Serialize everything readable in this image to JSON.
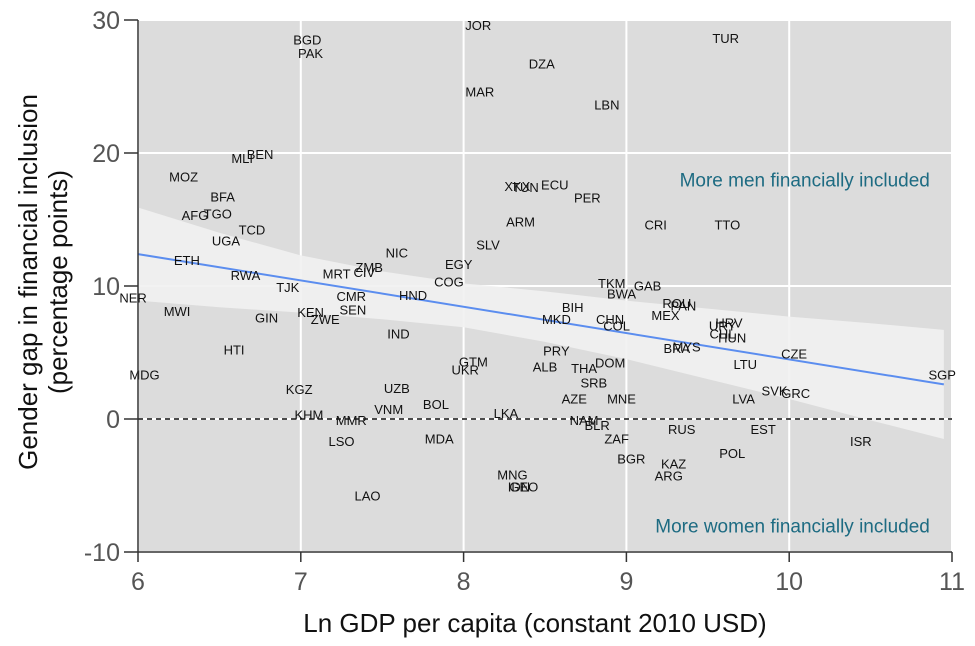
{
  "chart_data": {
    "type": "scatter",
    "title": "",
    "xlabel": "Ln GDP per capita (constant 2010 USD)",
    "ylabel_line1": "Gender gap in financial inclusion",
    "ylabel_line2": "(percentage points)",
    "xlim": [
      6,
      11
    ],
    "ylim": [
      -10,
      30
    ],
    "x_ticks": [
      {
        "value": 6,
        "label": "6"
      },
      {
        "value": 7,
        "label": "7"
      },
      {
        "value": 8,
        "label": "8"
      },
      {
        "value": 9,
        "label": "9"
      },
      {
        "value": 10,
        "label": "10"
      },
      {
        "value": 11,
        "label": "11"
      }
    ],
    "y_ticks": [
      {
        "value": -10,
        "label": "-10"
      },
      {
        "value": 0,
        "label": "0"
      },
      {
        "value": 10,
        "label": "10"
      },
      {
        "value": 20,
        "label": "20"
      },
      {
        "value": 30,
        "label": "30"
      }
    ],
    "grid": true,
    "reference_line": {
      "y": 0,
      "style": "dashed"
    },
    "fit_line": {
      "x": [
        6,
        10.95
      ],
      "y": [
        12.4,
        2.6
      ],
      "color": "#5b8def"
    },
    "confidence_band": {
      "x": [
        6,
        6.5,
        7,
        7.5,
        8,
        8.5,
        9,
        9.5,
        10,
        10.5,
        10.95
      ],
      "upper": [
        15.9,
        14.0,
        12.3,
        11.1,
        10.2,
        9.6,
        8.9,
        8.3,
        7.7,
        7.2,
        6.7
      ],
      "lower": [
        8.9,
        8.4,
        8.0,
        7.5,
        6.9,
        5.8,
        4.5,
        3.0,
        1.5,
        -0.1,
        -1.5
      ]
    },
    "annotations": [
      {
        "text": "More men financially included",
        "x": 10.95,
        "y": 18,
        "color": "#1d6b82"
      },
      {
        "text": "More women financially included",
        "x": 10.95,
        "y": -8,
        "color": "#1d6b82"
      }
    ],
    "colors": {
      "panel": "#dcdcdc",
      "grid": "#ffffff",
      "band": "#f1f1f1",
      "text": "#111111"
    },
    "points": [
      {
        "label": "JOR",
        "x": 8.09,
        "y": 29.6
      },
      {
        "label": "TUR",
        "x": 9.61,
        "y": 28.6
      },
      {
        "label": "BGD",
        "x": 7.04,
        "y": 28.5
      },
      {
        "label": "PAK",
        "x": 7.06,
        "y": 27.5
      },
      {
        "label": "DZA",
        "x": 8.48,
        "y": 26.7
      },
      {
        "label": "MAR",
        "x": 8.1,
        "y": 24.6
      },
      {
        "label": "LBN",
        "x": 8.88,
        "y": 23.6
      },
      {
        "label": "MLI",
        "x": 6.64,
        "y": 19.6
      },
      {
        "label": "BEN",
        "x": 6.75,
        "y": 19.9
      },
      {
        "label": "MOZ",
        "x": 6.28,
        "y": 18.2
      },
      {
        "label": "BFA",
        "x": 6.52,
        "y": 16.7
      },
      {
        "label": "XKX",
        "x": 8.33,
        "y": 17.5
      },
      {
        "label": "TUN",
        "x": 8.38,
        "y": 17.4
      },
      {
        "label": "ECU",
        "x": 8.56,
        "y": 17.6
      },
      {
        "label": "PER",
        "x": 8.76,
        "y": 16.6
      },
      {
        "label": "AFG",
        "x": 6.35,
        "y": 15.3
      },
      {
        "label": "TGO",
        "x": 6.49,
        "y": 15.4
      },
      {
        "label": "ARM",
        "x": 8.35,
        "y": 14.8
      },
      {
        "label": "CRI",
        "x": 9.18,
        "y": 14.6
      },
      {
        "label": "TTO",
        "x": 9.62,
        "y": 14.6
      },
      {
        "label": "TCD",
        "x": 6.7,
        "y": 14.2
      },
      {
        "label": "UGA",
        "x": 6.54,
        "y": 13.4
      },
      {
        "label": "SLV",
        "x": 8.15,
        "y": 13.1
      },
      {
        "label": "NIC",
        "x": 7.59,
        "y": 12.5
      },
      {
        "label": "ETH",
        "x": 6.3,
        "y": 11.9
      },
      {
        "label": "EGY",
        "x": 7.97,
        "y": 11.6
      },
      {
        "label": "ZMB",
        "x": 7.42,
        "y": 11.4
      },
      {
        "label": "MRT",
        "x": 7.22,
        "y": 10.9
      },
      {
        "label": "CIV",
        "x": 7.39,
        "y": 11.0
      },
      {
        "label": "RWA",
        "x": 6.66,
        "y": 10.8
      },
      {
        "label": "COG",
        "x": 7.91,
        "y": 10.3
      },
      {
        "label": "TJK",
        "x": 6.92,
        "y": 9.9
      },
      {
        "label": "TKM",
        "x": 8.91,
        "y": 10.2
      },
      {
        "label": "GAB",
        "x": 9.13,
        "y": 10.0
      },
      {
        "label": "BWA",
        "x": 8.97,
        "y": 9.4
      },
      {
        "label": "HND",
        "x": 7.69,
        "y": 9.3
      },
      {
        "label": "CMR",
        "x": 7.31,
        "y": 9.2
      },
      {
        "label": "ROU",
        "x": 9.31,
        "y": 8.7
      },
      {
        "label": "PAN",
        "x": 9.35,
        "y": 8.5
      },
      {
        "label": "NER",
        "x": 5.97,
        "y": 9.1
      },
      {
        "label": "BIH",
        "x": 8.67,
        "y": 8.4
      },
      {
        "label": "SEN",
        "x": 7.32,
        "y": 8.2
      },
      {
        "label": "KEN",
        "x": 7.06,
        "y": 8.0
      },
      {
        "label": "MWI",
        "x": 6.24,
        "y": 8.1
      },
      {
        "label": "MEX",
        "x": 9.24,
        "y": 7.8
      },
      {
        "label": "ZWE",
        "x": 7.15,
        "y": 7.5
      },
      {
        "label": "CHN",
        "x": 8.9,
        "y": 7.5
      },
      {
        "label": "MKD",
        "x": 8.57,
        "y": 7.5
      },
      {
        "label": "GIN",
        "x": 6.79,
        "y": 7.6
      },
      {
        "label": "HRV",
        "x": 9.63,
        "y": 7.2
      },
      {
        "label": "URY",
        "x": 9.59,
        "y": 7.0
      },
      {
        "label": "COL",
        "x": 8.94,
        "y": 7.0
      },
      {
        "label": "CHL",
        "x": 9.59,
        "y": 6.4
      },
      {
        "label": "HUN",
        "x": 9.65,
        "y": 6.1
      },
      {
        "label": "IND",
        "x": 7.6,
        "y": 6.4
      },
      {
        "label": "MYS",
        "x": 9.37,
        "y": 5.4
      },
      {
        "label": "BRA",
        "x": 9.31,
        "y": 5.3
      },
      {
        "label": "HTI",
        "x": 6.59,
        "y": 5.2
      },
      {
        "label": "PRY",
        "x": 8.57,
        "y": 5.1
      },
      {
        "label": "CZE",
        "x": 10.03,
        "y": 4.9
      },
      {
        "label": "GTM",
        "x": 8.06,
        "y": 4.3
      },
      {
        "label": "DOM",
        "x": 8.9,
        "y": 4.2
      },
      {
        "label": "UKR",
        "x": 8.01,
        "y": 3.7
      },
      {
        "label": "ALB",
        "x": 8.5,
        "y": 3.9
      },
      {
        "label": "THA",
        "x": 8.74,
        "y": 3.8
      },
      {
        "label": "LTU",
        "x": 9.73,
        "y": 4.1
      },
      {
        "label": "SGP",
        "x": 10.94,
        "y": 3.3
      },
      {
        "label": "MDG",
        "x": 6.04,
        "y": 3.3
      },
      {
        "label": "SRB",
        "x": 8.8,
        "y": 2.7
      },
      {
        "label": "UZB",
        "x": 7.59,
        "y": 2.3
      },
      {
        "label": "KGZ",
        "x": 6.99,
        "y": 2.2
      },
      {
        "label": "SVK",
        "x": 9.91,
        "y": 2.1
      },
      {
        "label": "GRC",
        "x": 10.04,
        "y": 1.9
      },
      {
        "label": "AZE",
        "x": 8.68,
        "y": 1.5
      },
      {
        "label": "MNE",
        "x": 8.97,
        "y": 1.5
      },
      {
        "label": "LVA",
        "x": 9.72,
        "y": 1.5
      },
      {
        "label": "BOL",
        "x": 7.83,
        "y": 1.1
      },
      {
        "label": "VNM",
        "x": 7.54,
        "y": 0.7
      },
      {
        "label": "KHM",
        "x": 7.05,
        "y": 0.3
      },
      {
        "label": "LKA",
        "x": 8.26,
        "y": 0.4
      },
      {
        "label": "MMR",
        "x": 7.31,
        "y": -0.1
      },
      {
        "label": "NAM",
        "x": 8.74,
        "y": -0.1
      },
      {
        "label": "BLR",
        "x": 8.82,
        "y": -0.5
      },
      {
        "label": "RUS",
        "x": 9.34,
        "y": -0.8
      },
      {
        "label": "EST",
        "x": 9.84,
        "y": -0.8
      },
      {
        "label": "LSO",
        "x": 7.25,
        "y": -1.7
      },
      {
        "label": "MDA",
        "x": 7.85,
        "y": -1.5
      },
      {
        "label": "ZAF",
        "x": 8.94,
        "y": -1.5
      },
      {
        "label": "ISR",
        "x": 10.44,
        "y": -1.7
      },
      {
        "label": "POL",
        "x": 9.65,
        "y": -2.6
      },
      {
        "label": "BGR",
        "x": 9.03,
        "y": -3.0
      },
      {
        "label": "KAZ",
        "x": 9.29,
        "y": -3.4
      },
      {
        "label": "ARG",
        "x": 9.26,
        "y": -4.3
      },
      {
        "label": "MNG",
        "x": 8.3,
        "y": -4.2
      },
      {
        "label": "IDN",
        "x": 8.34,
        "y": -5.1
      },
      {
        "label": "GEO",
        "x": 8.37,
        "y": -5.1
      },
      {
        "label": "LAO",
        "x": 7.41,
        "y": -5.8
      }
    ]
  }
}
